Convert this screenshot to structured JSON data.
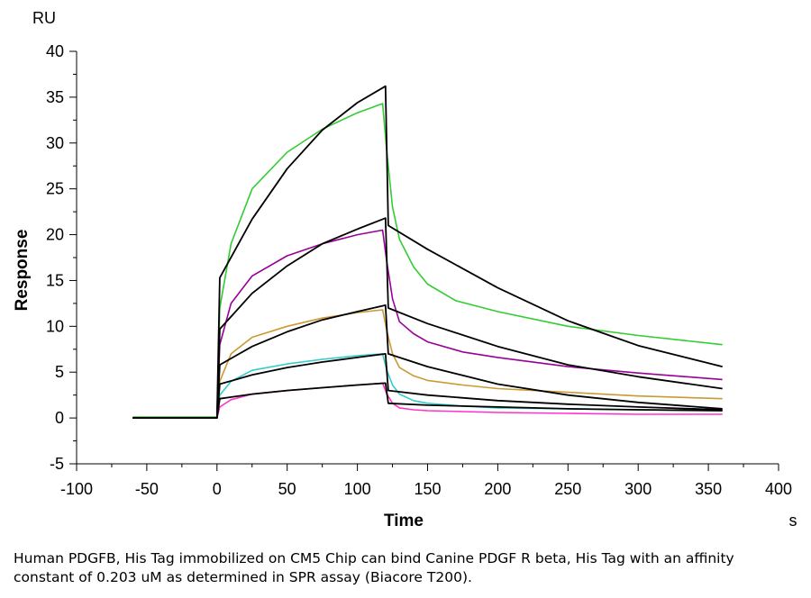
{
  "caption": "Human PDGFB, His Tag immobilized on CM5 Chip can bind Canine PDGF R beta, His Tag with an affinity constant of 0.203 uM as determined in SPR assay (Biacore T200).",
  "chart_data": {
    "type": "line",
    "title": "",
    "xlabel": "Time",
    "ylabel": "Response",
    "x_unit": "s",
    "y_unit": "RU",
    "xlim": [
      -100,
      400
    ],
    "ylim": [
      -5,
      40
    ],
    "xticks": [
      -100,
      -50,
      0,
      50,
      100,
      150,
      200,
      250,
      300,
      350,
      400
    ],
    "yticks": [
      -5,
      0,
      5,
      10,
      15,
      20,
      25,
      30,
      35,
      40
    ],
    "grid": false,
    "legend": "none",
    "x_range_data": [
      -60,
      360
    ],
    "association_start": 0,
    "dissociation_start": 120,
    "series": [
      {
        "color": "#33cc33",
        "role": "measured",
        "baseline": 0.1,
        "r_end_assoc": 34.3,
        "r_end_dissoc": 8.0,
        "points": [
          [
            0,
            0
          ],
          [
            2,
            12
          ],
          [
            10,
            19
          ],
          [
            25,
            25
          ],
          [
            50,
            29
          ],
          [
            75,
            31.5
          ],
          [
            100,
            33.3
          ],
          [
            118,
            34.3
          ],
          [
            121,
            29
          ],
          [
            125,
            23
          ],
          [
            130,
            19.5
          ],
          [
            140,
            16.5
          ],
          [
            150,
            14.6
          ],
          [
            170,
            12.8
          ],
          [
            200,
            11.6
          ],
          [
            250,
            10.0
          ],
          [
            300,
            9.0
          ],
          [
            360,
            8.0
          ]
        ]
      },
      {
        "color": "#990099",
        "role": "measured",
        "baseline": 0.0,
        "r_end_assoc": 20.5,
        "r_end_dissoc": 4.2,
        "points": [
          [
            0,
            0
          ],
          [
            2,
            8
          ],
          [
            10,
            12.5
          ],
          [
            25,
            15.5
          ],
          [
            50,
            17.7
          ],
          [
            75,
            19.0
          ],
          [
            100,
            20.0
          ],
          [
            118,
            20.5
          ],
          [
            121,
            17
          ],
          [
            125,
            13
          ],
          [
            130,
            10.5
          ],
          [
            140,
            9.2
          ],
          [
            150,
            8.3
          ],
          [
            175,
            7.2
          ],
          [
            200,
            6.6
          ],
          [
            250,
            5.6
          ],
          [
            300,
            4.9
          ],
          [
            360,
            4.2
          ]
        ]
      },
      {
        "color": "#cc9933",
        "role": "measured",
        "baseline": 0.0,
        "r_end_assoc": 11.8,
        "r_end_dissoc": 2.1,
        "points": [
          [
            0,
            0
          ],
          [
            2,
            4
          ],
          [
            10,
            7
          ],
          [
            25,
            8.8
          ],
          [
            50,
            10.0
          ],
          [
            75,
            10.9
          ],
          [
            100,
            11.5
          ],
          [
            118,
            11.8
          ],
          [
            121,
            9.5
          ],
          [
            125,
            7.0
          ],
          [
            130,
            5.5
          ],
          [
            140,
            4.6
          ],
          [
            150,
            4.1
          ],
          [
            175,
            3.6
          ],
          [
            200,
            3.2
          ],
          [
            250,
            2.8
          ],
          [
            300,
            2.4
          ],
          [
            360,
            2.1
          ]
        ]
      },
      {
        "color": "#33cccc",
        "role": "measured",
        "baseline": 0.0,
        "r_end_assoc": 7.0,
        "r_end_dissoc": 0.8,
        "points": [
          [
            0,
            0
          ],
          [
            2,
            2.5
          ],
          [
            10,
            4.0
          ],
          [
            25,
            5.2
          ],
          [
            50,
            5.9
          ],
          [
            75,
            6.4
          ],
          [
            100,
            6.8
          ],
          [
            118,
            7.0
          ],
          [
            121,
            5.2
          ],
          [
            125,
            3.6
          ],
          [
            130,
            2.6
          ],
          [
            140,
            1.9
          ],
          [
            150,
            1.6
          ],
          [
            175,
            1.3
          ],
          [
            200,
            1.1
          ],
          [
            250,
            1.0
          ],
          [
            300,
            0.9
          ],
          [
            360,
            0.8
          ]
        ]
      },
      {
        "color": "#ff33cc",
        "role": "measured",
        "baseline": 0.0,
        "r_end_assoc": 3.8,
        "r_end_dissoc": 0.4,
        "points": [
          [
            0,
            0
          ],
          [
            2,
            1.2
          ],
          [
            10,
            2.0
          ],
          [
            25,
            2.6
          ],
          [
            50,
            3.0
          ],
          [
            75,
            3.3
          ],
          [
            100,
            3.6
          ],
          [
            118,
            3.8
          ],
          [
            121,
            2.6
          ],
          [
            125,
            1.6
          ],
          [
            130,
            1.1
          ],
          [
            140,
            0.9
          ],
          [
            150,
            0.8
          ],
          [
            175,
            0.7
          ],
          [
            200,
            0.6
          ],
          [
            250,
            0.5
          ],
          [
            300,
            0.4
          ],
          [
            360,
            0.4
          ]
        ]
      },
      {
        "color": "#000000",
        "role": "fit",
        "r_end_assoc": 36.2,
        "r_end_dissoc": 5.6,
        "points": [
          [
            0,
            0
          ],
          [
            2,
            15.3
          ],
          [
            25,
            21.7
          ],
          [
            50,
            27.2
          ],
          [
            75,
            31.4
          ],
          [
            100,
            34.4
          ],
          [
            120,
            36.2
          ],
          [
            122,
            21.0
          ],
          [
            150,
            18.4
          ],
          [
            200,
            14.2
          ],
          [
            250,
            10.6
          ],
          [
            300,
            7.9
          ],
          [
            360,
            5.6
          ]
        ]
      },
      {
        "color": "#000000",
        "role": "fit",
        "r_end_assoc": 21.8,
        "r_end_dissoc": 3.2,
        "points": [
          [
            0,
            0
          ],
          [
            2,
            9.7
          ],
          [
            25,
            13.6
          ],
          [
            50,
            16.6
          ],
          [
            75,
            19.0
          ],
          [
            100,
            20.6
          ],
          [
            120,
            21.8
          ],
          [
            122,
            12.0
          ],
          [
            150,
            10.3
          ],
          [
            200,
            7.8
          ],
          [
            250,
            5.8
          ],
          [
            300,
            4.5
          ],
          [
            360,
            3.2
          ]
        ]
      },
      {
        "color": "#000000",
        "role": "fit",
        "r_end_assoc": 12.3,
        "r_end_dissoc": 1.0,
        "points": [
          [
            0,
            0
          ],
          [
            2,
            5.8
          ],
          [
            25,
            7.8
          ],
          [
            50,
            9.4
          ],
          [
            75,
            10.7
          ],
          [
            100,
            11.6
          ],
          [
            120,
            12.3
          ],
          [
            122,
            7.0
          ],
          [
            150,
            5.6
          ],
          [
            200,
            3.7
          ],
          [
            250,
            2.5
          ],
          [
            300,
            1.7
          ],
          [
            360,
            1.0
          ]
        ]
      },
      {
        "color": "#000000",
        "role": "fit",
        "r_end_assoc": 7.0,
        "r_end_dissoc": 0.9,
        "points": [
          [
            0,
            0
          ],
          [
            2,
            3.7
          ],
          [
            25,
            4.7
          ],
          [
            50,
            5.5
          ],
          [
            75,
            6.1
          ],
          [
            100,
            6.6
          ],
          [
            120,
            7.0
          ],
          [
            122,
            3.0
          ],
          [
            150,
            2.5
          ],
          [
            200,
            1.9
          ],
          [
            250,
            1.5
          ],
          [
            300,
            1.2
          ],
          [
            360,
            0.9
          ]
        ]
      },
      {
        "color": "#000000",
        "role": "fit",
        "r_end_assoc": 3.8,
        "r_end_dissoc": 0.8,
        "points": [
          [
            0,
            0
          ],
          [
            2,
            2.1
          ],
          [
            25,
            2.6
          ],
          [
            50,
            3.0
          ],
          [
            75,
            3.3
          ],
          [
            100,
            3.6
          ],
          [
            120,
            3.8
          ],
          [
            122,
            1.6
          ],
          [
            150,
            1.4
          ],
          [
            200,
            1.2
          ],
          [
            250,
            1.0
          ],
          [
            300,
            0.9
          ],
          [
            360,
            0.8
          ]
        ]
      }
    ]
  }
}
